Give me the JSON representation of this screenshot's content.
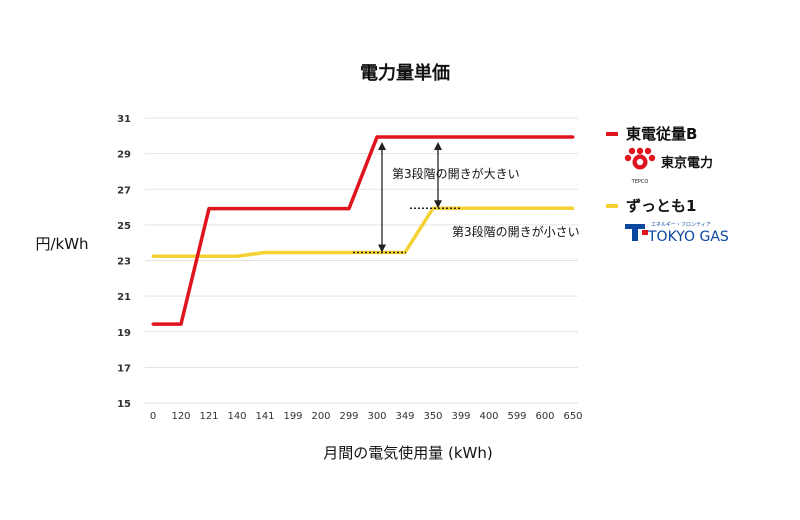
{
  "chart_data": {
    "type": "line",
    "title": "電力量単価",
    "xlabel": "月間の電気使用量 (kWh)",
    "ylabel": "円/kWh",
    "categories": [
      "0",
      "120",
      "121",
      "140",
      "141",
      "199",
      "200",
      "299",
      "300",
      "349",
      "350",
      "399",
      "400",
      "599",
      "600",
      "650"
    ],
    "ylim": [
      15,
      31
    ],
    "yticks": [
      15,
      17,
      19,
      21,
      23,
      25,
      27,
      29,
      31
    ],
    "grid": true,
    "legend_position": "right",
    "series": [
      {
        "name": "東電従量B",
        "color": "#e0141e",
        "values": [
          19.43,
          19.43,
          25.91,
          25.91,
          25.91,
          25.91,
          25.91,
          25.91,
          29.93,
          29.93,
          29.93,
          29.93,
          29.93,
          29.93,
          29.93,
          29.93
        ]
      },
      {
        "name": "ずっとも1",
        "color": "#f5d233",
        "values": [
          23.24,
          23.24,
          23.24,
          23.24,
          23.45,
          23.45,
          23.45,
          23.45,
          23.45,
          23.45,
          25.93,
          25.93,
          25.93,
          25.93,
          25.93,
          25.93
        ]
      }
    ],
    "annotations": [
      {
        "text": "第3段階の開きが大きい"
      },
      {
        "text": "第3段階の開きが小さい"
      }
    ]
  },
  "logos": {
    "tepco": {
      "text": "東京電力",
      "sub": "TEPCO",
      "color": "#e0141e"
    },
    "tokyogas": {
      "text": "TOKYO GAS",
      "sub": "エネルギー・フロンティア",
      "color": "#0a47a0"
    }
  }
}
